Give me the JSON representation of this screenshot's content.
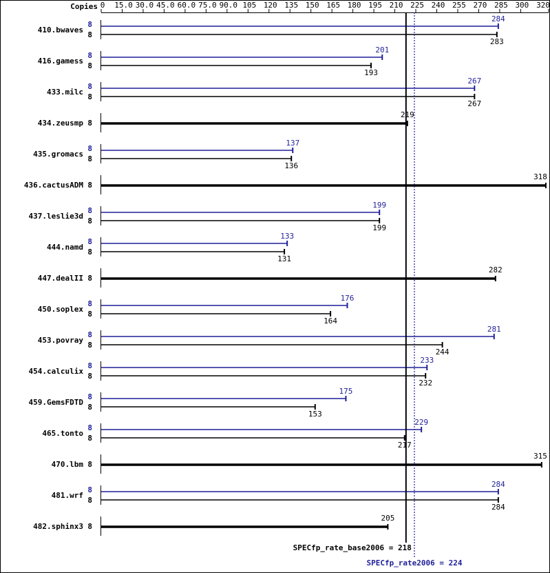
{
  "chart_data": {
    "type": "bar",
    "copies_label": "Copies",
    "categories": [
      "410.bwaves",
      "416.gamess",
      "433.milc",
      "434.zeusmp",
      "435.gromacs",
      "436.cactusADM",
      "437.leslie3d",
      "444.namd",
      "447.dealII",
      "450.soplex",
      "453.povray",
      "454.calculix",
      "459.GemsFDTD",
      "465.tonto",
      "470.lbm",
      "481.wrf",
      "482.sphinx3"
    ],
    "series": [
      {
        "color": "#1f1f99",
        "values": [
          284,
          201,
          267,
          null,
          137,
          null,
          199,
          133,
          null,
          176,
          281,
          233,
          175,
          229,
          null,
          284,
          null
        ],
        "copies": [
          8,
          8,
          8,
          null,
          8,
          null,
          8,
          8,
          null,
          8,
          8,
          8,
          8,
          8,
          null,
          8,
          null
        ]
      },
      {
        "color": "#000000",
        "values": [
          283,
          193,
          267,
          219,
          136,
          318,
          199,
          131,
          282,
          164,
          244,
          232,
          153,
          217,
          315,
          284,
          205
        ],
        "copies": [
          8,
          8,
          8,
          8,
          8,
          8,
          8,
          8,
          8,
          8,
          8,
          8,
          8,
          8,
          8,
          8,
          8
        ]
      }
    ],
    "xlim": [
      0,
      320
    ],
    "xticks": [
      0,
      {
        "value": 15,
        "label": "15.0"
      },
      {
        "value": 30,
        "label": "30.0"
      },
      {
        "value": 45,
        "label": "45.0"
      },
      {
        "value": 60,
        "label": "60.0"
      },
      {
        "value": 75,
        "label": "75.0"
      },
      {
        "value": 90,
        "label": "90.0"
      },
      105,
      120,
      135,
      150,
      165,
      180,
      195,
      210,
      225,
      240,
      255,
      270,
      285,
      300,
      320
    ],
    "reference_lines": [
      {
        "value": 218,
        "label": "SPECfp_rate_base2006 = 218",
        "color": "#000000",
        "style": "solid"
      },
      {
        "value": 224,
        "label": "SPECfp_rate2006 = 224",
        "color": "#1f1f99",
        "style": "dotted"
      }
    ]
  }
}
